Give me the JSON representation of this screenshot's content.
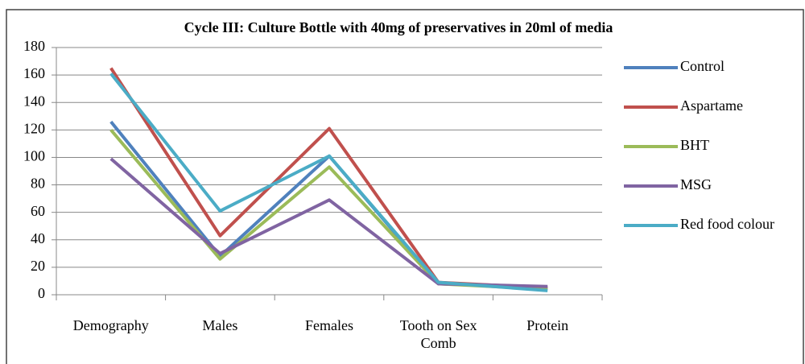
{
  "chart_data": {
    "type": "line",
    "title": "Cycle III: Culture Bottle with 40mg of preservatives in 20ml of media",
    "categories": [
      "Demography",
      "Males",
      "Females",
      "Tooth on Sex Comb",
      "Protein"
    ],
    "series": [
      {
        "name": "Control",
        "color": "#4f81bd",
        "values": [
          126,
          28,
          101,
          8,
          5
        ]
      },
      {
        "name": "Aspartame",
        "color": "#c0504d",
        "values": [
          165,
          43,
          121,
          9,
          5
        ]
      },
      {
        "name": "BHT",
        "color": "#9bbb59",
        "values": [
          120,
          26,
          93,
          8,
          4
        ]
      },
      {
        "name": "MSG",
        "color": "#8064a2",
        "values": [
          99,
          30,
          69,
          8,
          6
        ]
      },
      {
        "name": "Red food colour",
        "color": "#4bacc6",
        "values": [
          161,
          61,
          101,
          9,
          3
        ]
      }
    ],
    "ylim": [
      0,
      180
    ],
    "yticks": [
      0,
      20,
      40,
      60,
      80,
      100,
      120,
      140,
      160,
      180
    ],
    "grid": true,
    "legend": "right"
  }
}
